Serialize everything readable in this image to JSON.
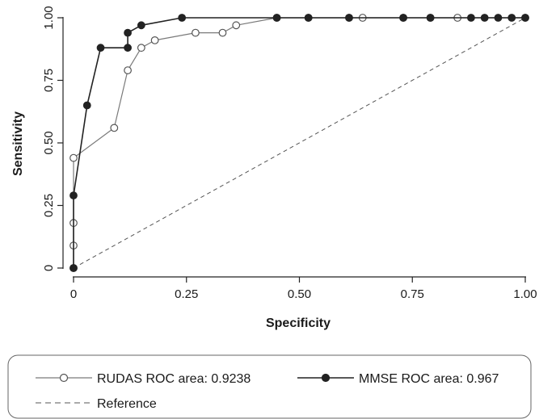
{
  "chart_data": {
    "type": "line",
    "title": "",
    "xlabel": "Specificity",
    "ylabel": "Sensitivity",
    "xlim": [
      0,
      1
    ],
    "ylim": [
      0,
      1
    ],
    "x_ticks": [
      0,
      0.25,
      0.5,
      0.75,
      1.0
    ],
    "x_tick_labels": [
      "0",
      "0.25",
      "0.50",
      "0.75",
      "1.00"
    ],
    "y_ticks": [
      0,
      0.25,
      0.5,
      0.75,
      1.0
    ],
    "y_tick_labels": [
      "0",
      "0.25",
      "0.50",
      "0.75",
      "1.00"
    ],
    "grid": false,
    "legend_placement": "bottom",
    "series": [
      {
        "name": "RUDAS ROC area: 0.9238",
        "marker": "open-circle",
        "color": "#7a7a7a",
        "points": [
          [
            0,
            0
          ],
          [
            0,
            0.09
          ],
          [
            0,
            0.18
          ],
          [
            0,
            0.44
          ],
          [
            0.09,
            0.56
          ],
          [
            0.12,
            0.79
          ],
          [
            0.15,
            0.88
          ],
          [
            0.18,
            0.91
          ],
          [
            0.27,
            0.94
          ],
          [
            0.33,
            0.94
          ],
          [
            0.36,
            0.97
          ],
          [
            0.45,
            1.0
          ],
          [
            0.52,
            1.0
          ],
          [
            0.61,
            1.0
          ],
          [
            0.64,
            1.0
          ],
          [
            0.73,
            1.0
          ],
          [
            0.79,
            1.0
          ],
          [
            0.85,
            1.0
          ],
          [
            1.0,
            1.0
          ]
        ]
      },
      {
        "name": "MMSE ROC area: 0.967",
        "marker": "filled-circle",
        "color": "#222222",
        "points": [
          [
            0,
            0
          ],
          [
            0,
            0.29
          ],
          [
            0.03,
            0.65
          ],
          [
            0.06,
            0.88
          ],
          [
            0.12,
            0.88
          ],
          [
            0.12,
            0.94
          ],
          [
            0.15,
            0.97
          ],
          [
            0.24,
            1.0
          ],
          [
            0.45,
            1.0
          ],
          [
            0.52,
            1.0
          ],
          [
            0.61,
            1.0
          ],
          [
            0.73,
            1.0
          ],
          [
            0.79,
            1.0
          ],
          [
            0.88,
            1.0
          ],
          [
            0.91,
            1.0
          ],
          [
            0.94,
            1.0
          ],
          [
            0.97,
            1.0
          ],
          [
            1.0,
            1.0
          ]
        ]
      },
      {
        "name": "Reference",
        "style": "dashed",
        "color": "#555555",
        "points": [
          [
            0,
            0
          ],
          [
            1,
            1
          ]
        ]
      }
    ]
  }
}
